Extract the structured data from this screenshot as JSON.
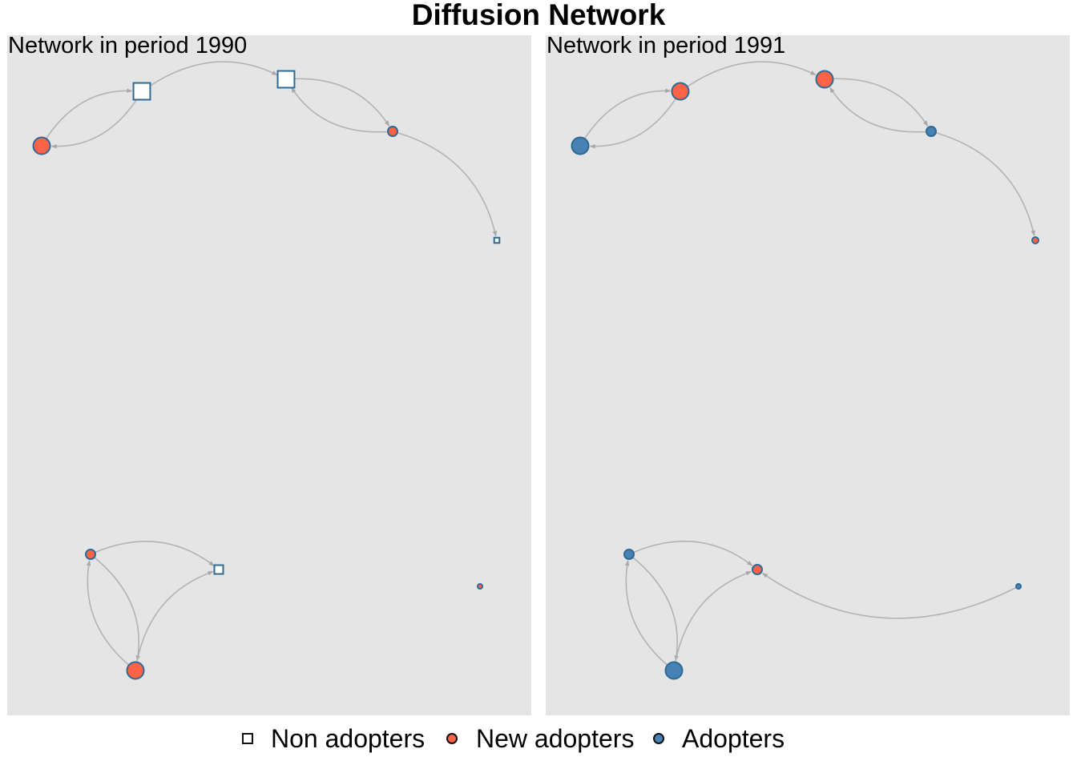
{
  "title": "Diffusion Network",
  "colors": {
    "non_adopter_fill": "#ffffff",
    "new_adopter_fill": "#ff6347",
    "adopter_fill": "#4682b4",
    "node_stroke": "#2d6a96",
    "edge": "#b3b3b3",
    "panel_bg": "#e5e5e5"
  },
  "legend": {
    "non_adopters": "Non adopters",
    "new_adopters": "New adopters",
    "adopters": "Adopters"
  },
  "node_size_levels": {
    "A": 3,
    "B": 3,
    "C": 3,
    "D": 2,
    "E": 1,
    "F": 2,
    "G": 0,
    "H": 3,
    "I": 2,
    "J": 3
  },
  "edges": [
    [
      "B",
      "A"
    ],
    [
      "A",
      "B"
    ],
    [
      "B",
      "C"
    ],
    [
      "C",
      "D"
    ],
    [
      "D",
      "C"
    ],
    [
      "D",
      "E"
    ],
    [
      "F",
      "H"
    ],
    [
      "H",
      "F"
    ],
    [
      "F",
      "I"
    ],
    [
      "H",
      "I"
    ]
  ],
  "panels": [
    {
      "label": "Network in period 1990",
      "status": {
        "A": "new",
        "B": "non",
        "C": "non",
        "D": "new",
        "E": "non",
        "F": "new",
        "G": "new",
        "H": "new",
        "I": "non"
      },
      "extra_edges": []
    },
    {
      "label": "Network in period 1991",
      "status": {
        "A": "adopter",
        "B": "new",
        "C": "new",
        "D": "adopter",
        "E": "new",
        "F": "adopter",
        "G": "adopter",
        "H": "adopter",
        "I": "new"
      },
      "extra_edges": [
        [
          "G",
          "I"
        ]
      ]
    }
  ]
}
